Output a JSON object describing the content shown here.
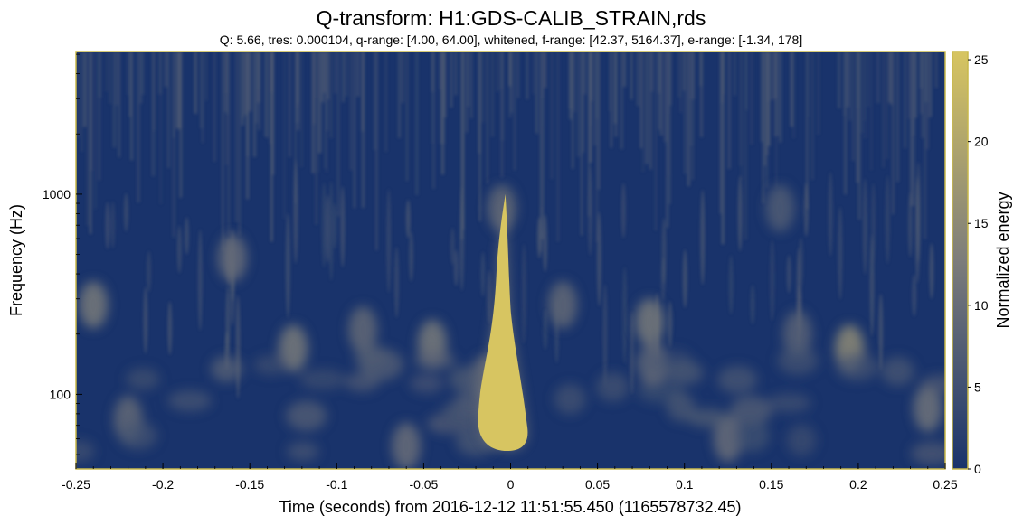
{
  "chart_data": {
    "type": "heatmap",
    "title": "Q-transform: H1:GDS-CALIB_STRAIN,rds",
    "subtitle": "Q: 5.66, tres: 0.000104, q-range: [4.00, 64.00], whitened, f-range: [42.37, 5164.37], e-range: [-1.34, 178]",
    "xlabel": "Time (seconds) from 2016-12-12 11:51:55.450 (1165578732.45)",
    "ylabel": "Frequency (Hz)",
    "colorbar_label": "Normalized energy",
    "xlim": [
      -0.25,
      0.25
    ],
    "ylim": [
      42.37,
      5164.37
    ],
    "yscale": "log",
    "clim": [
      0,
      25.5
    ],
    "x_ticks": [
      -0.25,
      -0.2,
      -0.15,
      -0.1,
      -0.05,
      0,
      0.05,
      0.1,
      0.15,
      0.2,
      0.25
    ],
    "x_tick_labels": [
      "-0.25",
      "-0.2",
      "-0.15",
      "-0.1",
      "-0.05",
      "0",
      "0.05",
      "0.1",
      "0.15",
      "0.2",
      "0.25"
    ],
    "y_ticks": [
      100,
      1000
    ],
    "y_tick_labels": [
      "100",
      "1000"
    ],
    "colorbar_ticks": [
      0,
      5,
      10,
      15,
      20,
      25
    ],
    "colorbar_tick_labels": [
      "0",
      "5",
      "10",
      "15",
      "20",
      "25"
    ],
    "colormap": {
      "low": "#19336b",
      "mid": "#7d7d7b",
      "high": "#d7c561"
    },
    "grid": false,
    "event": {
      "time": -0.003,
      "freq_range": [
        48,
        1000
      ],
      "peak_freq": 70,
      "peak_energy": 25.5
    },
    "background_blobs": [
      {
        "t": -0.24,
        "f": 280,
        "e": 12
      },
      {
        "t": -0.16,
        "f": 480,
        "e": 10
      },
      {
        "t": -0.125,
        "f": 170,
        "e": 12
      },
      {
        "t": -0.085,
        "f": 210,
        "e": 9
      },
      {
        "t": -0.06,
        "f": 55,
        "e": 10
      },
      {
        "t": -0.045,
        "f": 180,
        "e": 12
      },
      {
        "t": -0.22,
        "f": 75,
        "e": 9
      },
      {
        "t": -0.015,
        "f": 120,
        "e": 9
      },
      {
        "t": 0.03,
        "f": 280,
        "e": 9
      },
      {
        "t": 0.08,
        "f": 230,
        "e": 12
      },
      {
        "t": 0.082,
        "f": 140,
        "e": 10
      },
      {
        "t": 0.125,
        "f": 60,
        "e": 10
      },
      {
        "t": 0.195,
        "f": 170,
        "e": 15
      },
      {
        "t": 0.165,
        "f": 200,
        "e": 8
      },
      {
        "t": 0.24,
        "f": 85,
        "e": 11
      },
      {
        "t": -0.005,
        "f": 850,
        "e": 9
      },
      {
        "t": 0.155,
        "f": 850,
        "e": 7
      }
    ]
  }
}
